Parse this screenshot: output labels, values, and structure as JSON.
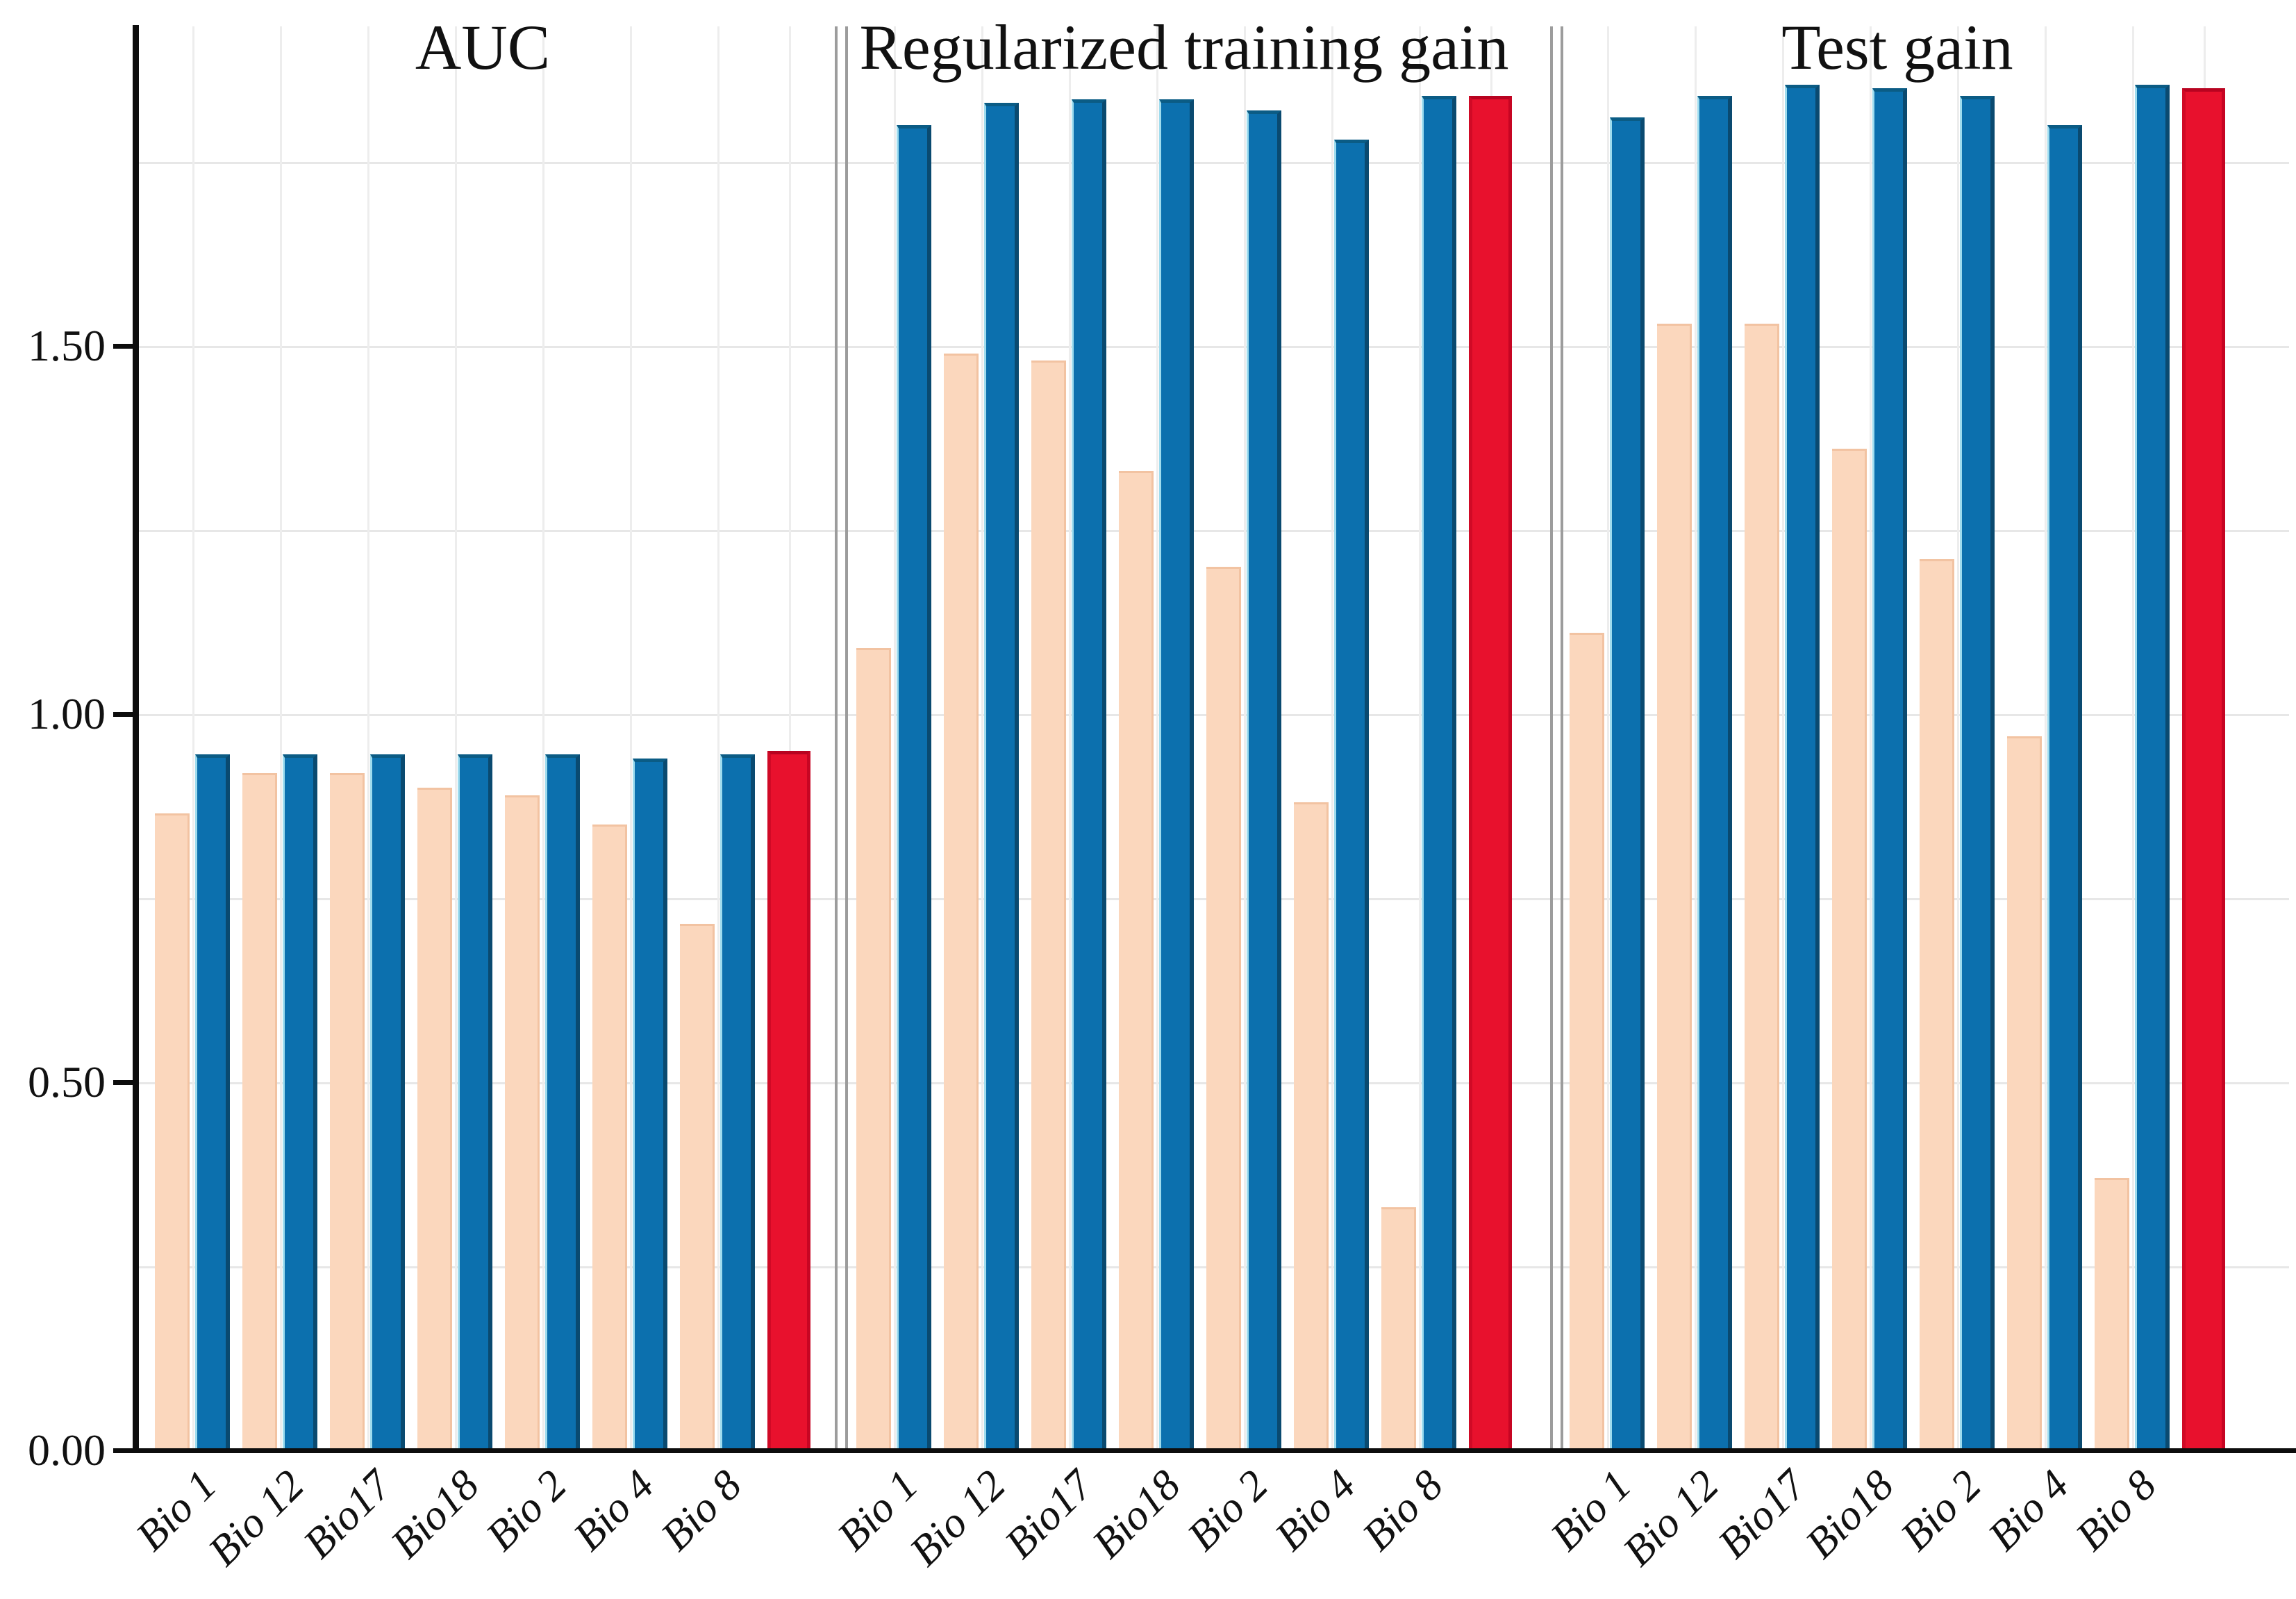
{
  "chart_data": {
    "type": "bar",
    "title": "",
    "categories": [
      "Bio 1",
      "Bio 12",
      "Bio17",
      "Bio18",
      "Bio 2",
      "Bio 4",
      "Bio 8"
    ],
    "ylim": [
      0,
      1.93
    ],
    "ytick_labels": [
      "0.00",
      "0.50",
      "1.00",
      "1.50"
    ],
    "ytick_values": [
      0,
      0.5,
      1.0,
      1.5
    ],
    "grid_step": 0.25,
    "grid": true,
    "legend_position": "none",
    "panels": [
      {
        "title": "AUC",
        "series": [
          {
            "name": "light-peach-bars",
            "color": "#fbd7bd",
            "values": [
              0.865,
              0.92,
              0.92,
              0.9,
              0.89,
              0.85,
              0.715
            ]
          },
          {
            "name": "blue-bars",
            "color": "#0c70ae",
            "values": [
              0.945,
              0.945,
              0.945,
              0.945,
              0.945,
              0.94,
              0.945
            ]
          }
        ],
        "overall_bar": {
          "name": "red-bar",
          "color": "#e8112d",
          "value": 0.95
        }
      },
      {
        "title": "Regularized training gain",
        "series": [
          {
            "name": "light-peach-bars",
            "color": "#fbd7bd",
            "values": [
              1.09,
              1.49,
              1.48,
              1.33,
              1.2,
              0.88,
              0.33
            ]
          },
          {
            "name": "blue-bars",
            "color": "#0c70ae",
            "values": [
              1.8,
              1.83,
              1.835,
              1.835,
              1.82,
              1.78,
              1.84
            ]
          }
        ],
        "overall_bar": {
          "name": "red-bar",
          "color": "#e8112d",
          "value": 1.84
        }
      },
      {
        "title": "Test gain",
        "series": [
          {
            "name": "light-peach-bars",
            "color": "#fbd7bd",
            "values": [
              1.11,
              1.53,
              1.53,
              1.36,
              1.21,
              0.97,
              0.37
            ]
          },
          {
            "name": "blue-bars",
            "color": "#0c70ae",
            "values": [
              1.81,
              1.84,
              1.855,
              1.85,
              1.84,
              1.8,
              1.855
            ]
          }
        ],
        "overall_bar": {
          "name": "red-bar",
          "color": "#e8112d",
          "value": 1.85
        }
      }
    ]
  },
  "colors": {
    "axis": "#0d0d0d",
    "grid_horizontal": "#e7e7e7",
    "grid_vertical": "#ededed",
    "separator": "#9c9c9c",
    "peach_fill": "#fbd7bd",
    "peach_edge": "#f2c3a2",
    "blue_fill": "#0c70ae",
    "blue_edge_dark": "#0a4a70",
    "blue_edge_light": "#9fdcee",
    "red_fill": "#e8112d",
    "red_edge": "#b80320",
    "background": "#ffffff"
  }
}
